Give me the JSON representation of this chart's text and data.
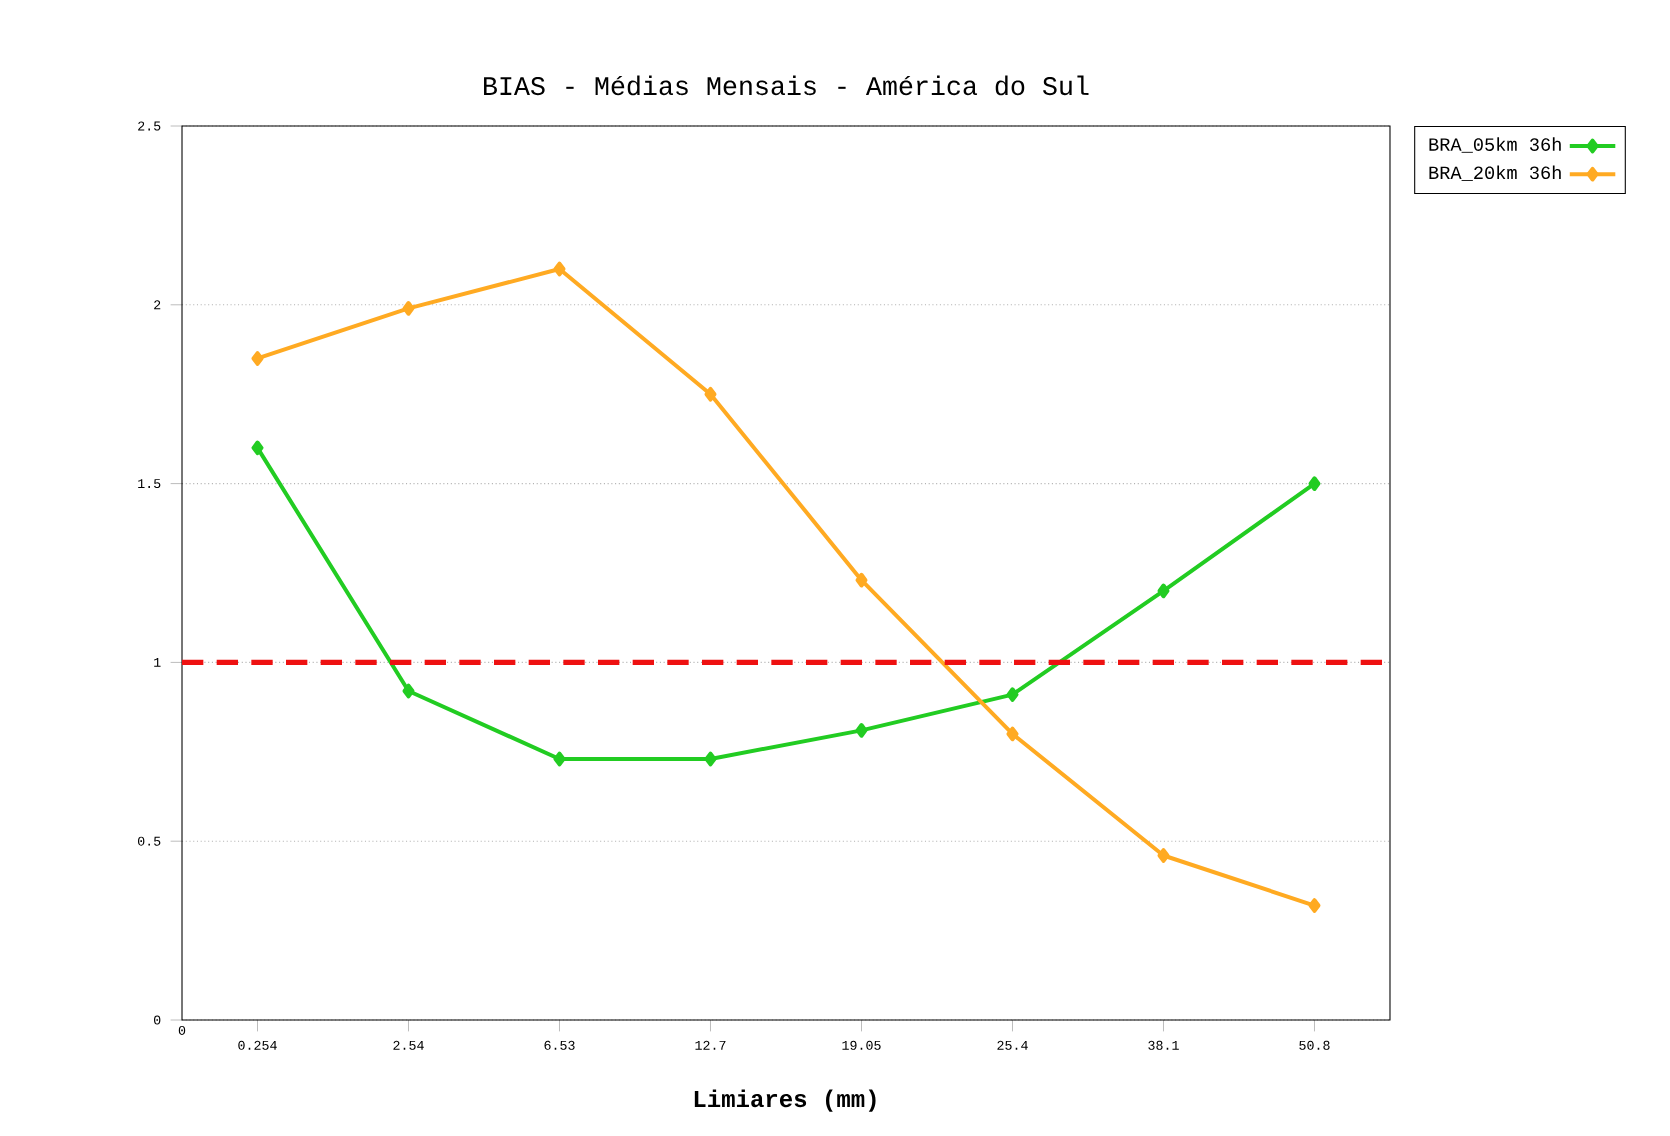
{
  "chart_data": {
    "type": "line",
    "title": "BIAS - Médias Mensais - América do Sul",
    "xlabel": "Limiares (mm)",
    "categories": [
      "0.254",
      "2.54",
      "6.53",
      "12.7",
      "19.05",
      "25.4",
      "38.1",
      "50.8"
    ],
    "series": [
      {
        "name": "BRA_05km 36h",
        "color": "#22cc22",
        "values": [
          1.6,
          0.92,
          0.73,
          0.73,
          0.81,
          0.91,
          1.2,
          1.5
        ]
      },
      {
        "name": "BRA_20km 36h",
        "color": "#ffaa22",
        "values": [
          1.85,
          1.99,
          2.1,
          1.75,
          1.23,
          0.8,
          0.46,
          0.32
        ]
      }
    ],
    "ylim": [
      0,
      2.5
    ],
    "yticks": [
      0,
      0.5,
      1,
      1.5,
      2,
      2.5
    ],
    "grid": "y",
    "legend": "top right",
    "marker": "diamond",
    "line_style": "solid",
    "ref_lines": [
      {
        "axis": "y",
        "value": 1,
        "color": "#ee1111",
        "line_style": "dashed"
      }
    ],
    "annotations": [
      "0"
    ]
  }
}
